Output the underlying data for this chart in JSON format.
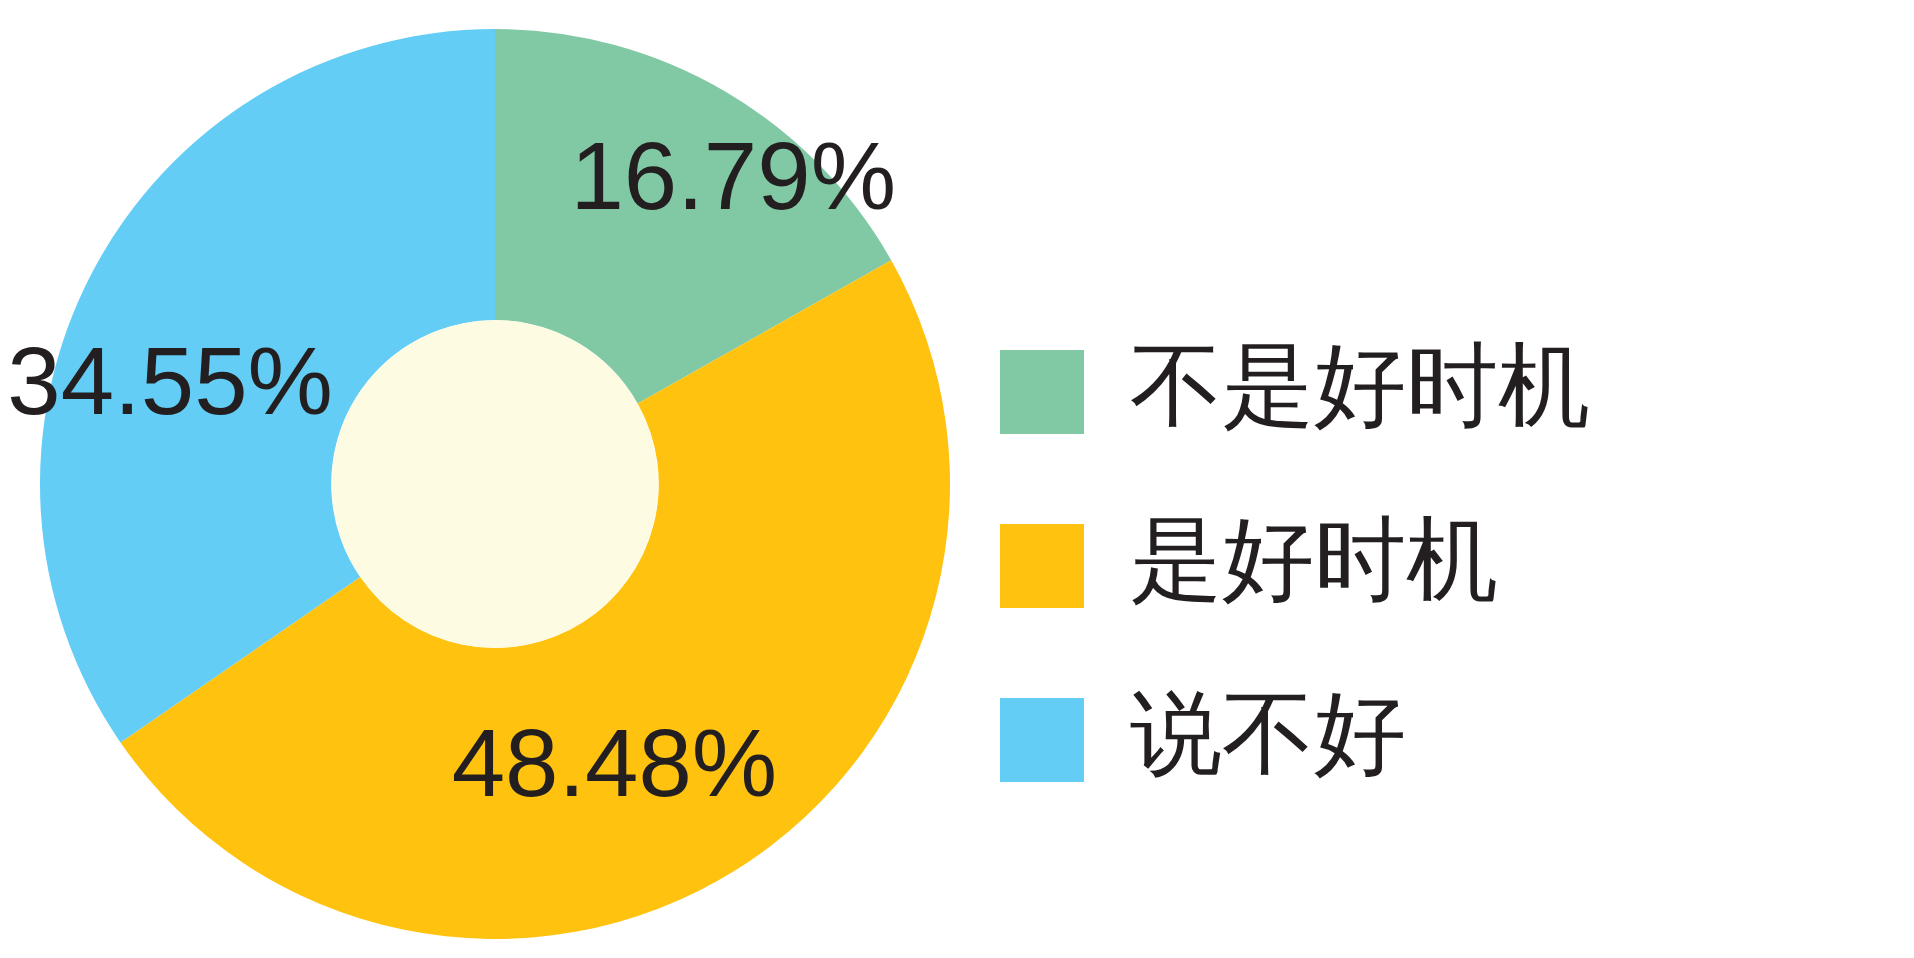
{
  "chart_data": {
    "type": "donut",
    "categories": [
      "不是好时机",
      "是好时机",
      "说不好"
    ],
    "values": [
      16.79,
      48.48,
      34.55
    ],
    "colors": [
      "#80c9a4",
      "#ffc20f",
      "#63cdf5"
    ],
    "value_labels": [
      "16.79%",
      "48.48%",
      "34.55%"
    ],
    "legend": "right"
  }
}
